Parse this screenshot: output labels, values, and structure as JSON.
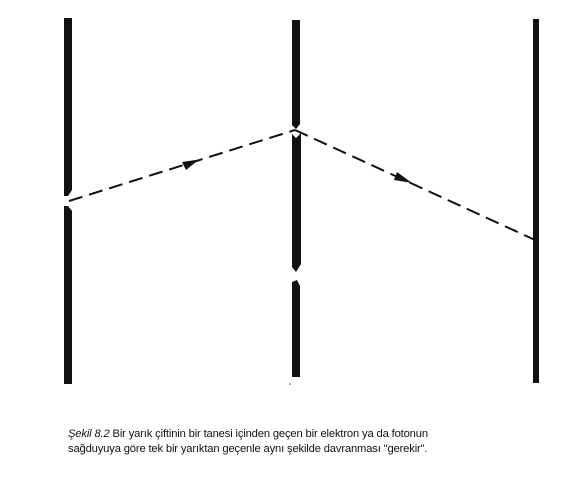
{
  "caption": {
    "label": "Şekil 8.2",
    "line1": "Bir yarık çiftinin bir tanesi içinden geçen bir elektron ya da fotonun",
    "line2": "sağduyuya göre tek bir yarıktan geçenle aynı şekilde davranması \"gerekir\"."
  },
  "colors": {
    "ink": "#111111",
    "background": "#ffffff"
  }
}
